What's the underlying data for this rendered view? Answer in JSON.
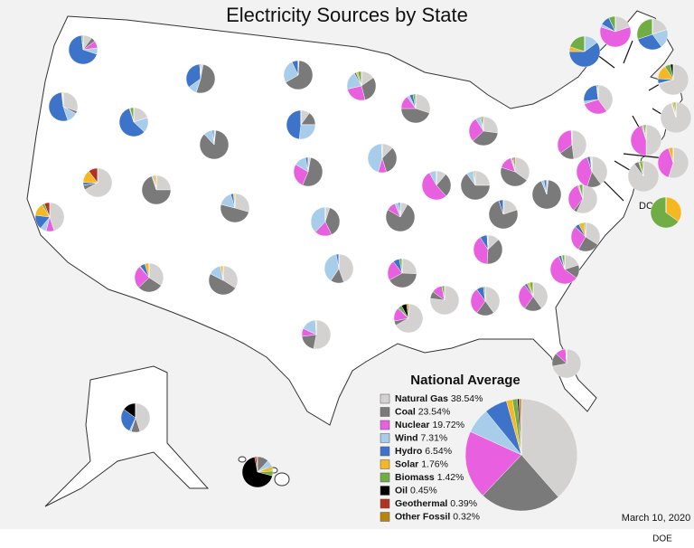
{
  "title": "Electricity Sources by State",
  "national_average": {
    "title": "National Average",
    "categories": [
      "Natural Gas",
      "Coal",
      "Nuclear",
      "Wind",
      "Hydro",
      "Solar",
      "Biomass",
      "Oil",
      "Geothermal",
      "Other Fossil"
    ],
    "colors": [
      "#d4d1d1",
      "#7a7a7a",
      "#e85fe0",
      "#a8cdea",
      "#3d74c9",
      "#f5b722",
      "#70ad45",
      "#000000",
      "#b3321f",
      "#b8860b"
    ],
    "values": [
      38.54,
      23.54,
      19.72,
      7.31,
      6.54,
      1.76,
      1.42,
      0.45,
      0.39,
      0.32
    ],
    "value_labels": [
      "38.54%",
      "23.54%",
      "19.72%",
      "7.31%",
      "6.54%",
      "1.76%",
      "1.42%",
      "0.45%",
      "0.39%",
      "0.32%"
    ]
  },
  "state_pies": [
    [
      10,
      5,
      8,
      7,
      68,
      0,
      2,
      0,
      0,
      0
    ],
    [
      30,
      3,
      0,
      12,
      53,
      1,
      1,
      0,
      0,
      0
    ],
    [
      45,
      0,
      9,
      7,
      16,
      14,
      3,
      0,
      6,
      0
    ],
    [
      65,
      5,
      0,
      0,
      3,
      14,
      0,
      0,
      10,
      0
    ],
    [
      20,
      0,
      0,
      17,
      58,
      1,
      4,
      0,
      0,
      0
    ],
    [
      3,
      52,
      0,
      10,
      34,
      0,
      0,
      1,
      0,
      0
    ],
    [
      2,
      86,
      0,
      10,
      2,
      0,
      0,
      0,
      0,
      0
    ],
    [
      25,
      70,
      0,
      1,
      1,
      3,
      0,
      0,
      0,
      0
    ],
    [
      31,
      52,
      0,
      17,
      3,
      2,
      0,
      0,
      0,
      0
    ],
    [
      36,
      30,
      27,
      1,
      6,
      5,
      0,
      0,
      0,
      0
    ],
    [
      35,
      50,
      0,
      15,
      0,
      3,
      0,
      0,
      0,
      0
    ],
    [
      1,
      65,
      0,
      26,
      7,
      0,
      0,
      0,
      0,
      0
    ],
    [
      10,
      15,
      0,
      27,
      48,
      0,
      0,
      0,
      0,
      0
    ],
    [
      3,
      55,
      28,
      14,
      3,
      0,
      0,
      0,
      0,
      0
    ],
    [
      5,
      38,
      19,
      38,
      0,
      0,
      0,
      0,
      0,
      0
    ],
    [
      45,
      15,
      0,
      38,
      3,
      0,
      0,
      0,
      0,
      0
    ],
    [
      53,
      20,
      9,
      17,
      0,
      1,
      0,
      0,
      0,
      0
    ],
    [
      15,
      30,
      25,
      20,
      2,
      2,
      4,
      0,
      0,
      0
    ],
    [
      12,
      32,
      9,
      43,
      1,
      0,
      0,
      0,
      0,
      0
    ],
    [
      8,
      73,
      10,
      4,
      2,
      0,
      0,
      0,
      0,
      0
    ],
    [
      25,
      40,
      22,
      0,
      7,
      0,
      3,
      0,
      0,
      0
    ],
    [
      67,
      5,
      15,
      0,
      1,
      0,
      4,
      6,
      0,
      2
    ],
    [
      30,
      45,
      15,
      3,
      4,
      0,
      3,
      0,
      0,
      0
    ],
    [
      11,
      27,
      53,
      8,
      0,
      0,
      0,
      0,
      0,
      0
    ],
    [
      27,
      36,
      28,
      5,
      1,
      0,
      2,
      0,
      0,
      1
    ],
    [
      25,
      65,
      0,
      7,
      1,
      0,
      1,
      0,
      0,
      1
    ],
    [
      35,
      45,
      15,
      2,
      0,
      0,
      0,
      1,
      0,
      2
    ],
    [
      20,
      75,
      0,
      0,
      5,
      0,
      0,
      0,
      0,
      0
    ],
    [
      13,
      38,
      40,
      0,
      8,
      0,
      1,
      0,
      0,
      0
    ],
    [
      77,
      8,
      12,
      0,
      0,
      0,
      3,
      0,
      0,
      0
    ],
    [
      40,
      20,
      30,
      0,
      8,
      0,
      2,
      0,
      0,
      0
    ],
    [
      40,
      20,
      30,
      0,
      3,
      3,
      4,
      0,
      0,
      0
    ],
    [
      72,
      15,
      12,
      0,
      0,
      1,
      0,
      0,
      0,
      0
    ],
    [
      20,
      15,
      58,
      0,
      3,
      1,
      3,
      0,
      0,
      0
    ],
    [
      35,
      25,
      30,
      0,
      5,
      6,
      2,
      0,
      0,
      0
    ],
    [
      57,
      4,
      33,
      0,
      1,
      1,
      4,
      0,
      0,
      0
    ],
    [
      2,
      92,
      0,
      3,
      3,
      0,
      0,
      0,
      0,
      0
    ],
    [
      48,
      17,
      34,
      1,
      0,
      0,
      0,
      0,
      0,
      0
    ],
    [
      40,
      0,
      30,
      3,
      25,
      0,
      1,
      1,
      0,
      0
    ],
    [
      20,
      0,
      0,
      20,
      30,
      0,
      30,
      0,
      0,
      0
    ],
    [
      0,
      0,
      0,
      15,
      60,
      5,
      20,
      0,
      0,
      0
    ],
    [
      20,
      0,
      60,
      3,
      10,
      0,
      7,
      0,
      0,
      0
    ],
    [
      70,
      0,
      0,
      1,
      5,
      15,
      6,
      3,
      0,
      0
    ],
    [
      95,
      0,
      0,
      1,
      0,
      2,
      2,
      0,
      0,
      0
    ],
    [
      50,
      0,
      45,
      0,
      1,
      1,
      2,
      1,
      0,
      0
    ],
    [
      55,
      0,
      40,
      0,
      0,
      5,
      0,
      0,
      0,
      0
    ],
    [
      90,
      5,
      0,
      0,
      0,
      1,
      3,
      0,
      0,
      1
    ],
    [
      40,
      15,
      40,
      0,
      3,
      1,
      1,
      0,
      0,
      0
    ],
    [
      0,
      0,
      0,
      0,
      0,
      35,
      65,
      0,
      0,
      0
    ],
    [
      45,
      10,
      0,
      2,
      28,
      0,
      0,
      15,
      0,
      0
    ],
    [
      0,
      12,
      0,
      6,
      1,
      5,
      5,
      68,
      2,
      1
    ]
  ],
  "dc_label": "DC",
  "date": "March 10, 2020",
  "source": "DOE"
}
